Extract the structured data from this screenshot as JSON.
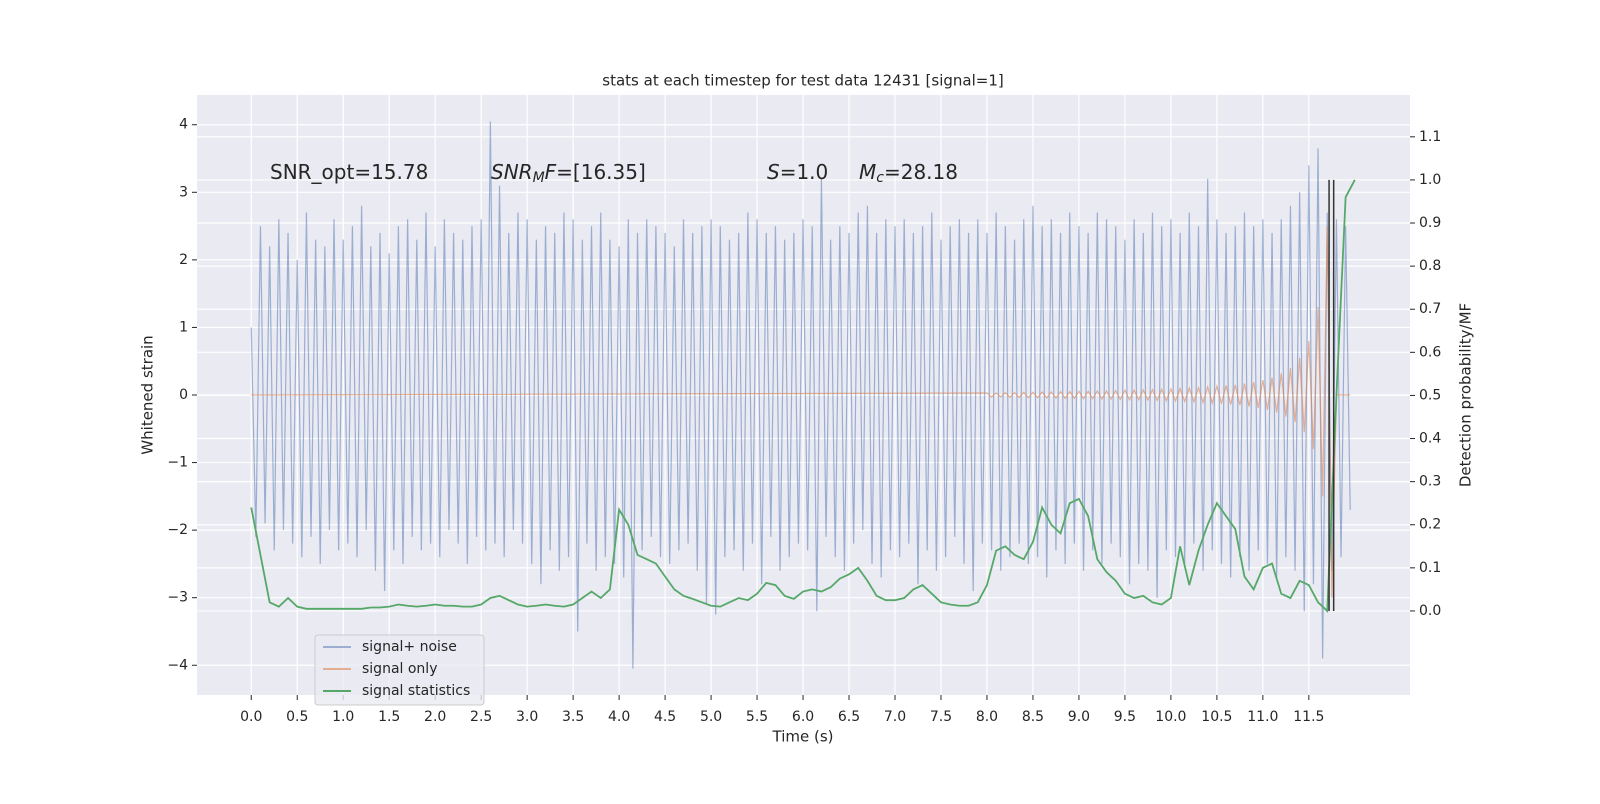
{
  "chart_data": {
    "type": "line",
    "title": "stats at each timestep for test data 12431 [signal=1]",
    "xlabel": "Time (s)",
    "ylabel": "Whitened strain",
    "y2label": "Detection probability/MF",
    "annotations": [
      [
        "SNR_opt=15.78"
      ],
      [
        "SNR",
        "M",
        "F",
        "=[16.35]"
      ],
      [
        "S",
        "=1.0"
      ],
      [
        "M",
        "c",
        "=28.18"
      ]
    ],
    "xlim": [
      -0.59,
      12.6
    ],
    "ylim": [
      -4.44,
      4.44
    ],
    "y2lim": [
      -0.195,
      1.197
    ],
    "xticks": [
      {
        "value": 0,
        "label": "0.0"
      },
      0.5,
      {
        "value": 1,
        "label": "1.0"
      },
      1.5,
      {
        "value": 2,
        "label": "2.0"
      },
      2.5,
      {
        "value": 3,
        "label": "3.0"
      },
      3.5,
      {
        "value": 4,
        "label": "4.0"
      },
      4.5,
      {
        "value": 5,
        "label": "5.0"
      },
      5.5,
      {
        "value": 6,
        "label": "6.0"
      },
      6.5,
      {
        "value": 7,
        "label": "7.0"
      },
      7.5,
      {
        "value": 8,
        "label": "8.0"
      },
      8.5,
      {
        "value": 9,
        "label": "9.0"
      },
      9.5,
      {
        "value": 10,
        "label": "10.0"
      },
      10.5,
      {
        "value": 11,
        "label": "11.0"
      },
      11.5
    ],
    "yticks": [
      {
        "value": -4,
        "label": "−4"
      },
      {
        "value": -3,
        "label": "−3"
      },
      {
        "value": -2,
        "label": "−2"
      },
      {
        "value": -1,
        "label": "−1"
      },
      0,
      1,
      2,
      3,
      4
    ],
    "y2ticks": [
      {
        "value": 0,
        "label": "0.0"
      },
      0.1,
      0.2,
      0.3,
      0.4,
      0.5,
      0.6,
      0.7,
      0.8,
      0.9,
      {
        "value": 1,
        "label": "1.0"
      },
      1.1
    ],
    "grid": true,
    "legend": "lower left",
    "series": [
      {
        "name": "signal+ noise",
        "color": "#4c72b0",
        "opacity": 0.5,
        "x": [
          0,
          0.05,
          0.1,
          0.15,
          0.2,
          0.25,
          0.3,
          0.35,
          0.4,
          0.45,
          0.5,
          0.55,
          0.6,
          0.65,
          0.7,
          0.75,
          0.8,
          0.85,
          0.9,
          0.95,
          1,
          1.05,
          1.1,
          1.15,
          1.2,
          1.25,
          1.3,
          1.35,
          1.4,
          1.45,
          1.5,
          1.55,
          1.6,
          1.65,
          1.7,
          1.75,
          1.8,
          1.85,
          1.9,
          1.95,
          2,
          2.05,
          2.1,
          2.15,
          2.2,
          2.25,
          2.3,
          2.35,
          2.4,
          2.45,
          2.5,
          2.55,
          2.6,
          2.65,
          2.7,
          2.75,
          2.8,
          2.85,
          2.9,
          2.95,
          3,
          3.05,
          3.1,
          3.15,
          3.2,
          3.25,
          3.3,
          3.35,
          3.4,
          3.45,
          3.5,
          3.55,
          3.6,
          3.65,
          3.7,
          3.75,
          3.8,
          3.85,
          3.9,
          3.95,
          4,
          4.05,
          4.1,
          4.15,
          4.2,
          4.25,
          4.3,
          4.35,
          4.4,
          4.45,
          4.5,
          4.55,
          4.6,
          4.65,
          4.7,
          4.75,
          4.8,
          4.85,
          4.9,
          4.95,
          5,
          5.05,
          5.1,
          5.15,
          5.2,
          5.25,
          5.3,
          5.35,
          5.4,
          5.45,
          5.5,
          5.55,
          5.6,
          5.65,
          5.7,
          5.75,
          5.8,
          5.85,
          5.9,
          5.95,
          6,
          6.05,
          6.1,
          6.15,
          6.2,
          6.25,
          6.3,
          6.35,
          6.4,
          6.45,
          6.5,
          6.55,
          6.6,
          6.65,
          6.7,
          6.75,
          6.8,
          6.85,
          6.9,
          6.95,
          7,
          7.05,
          7.1,
          7.15,
          7.2,
          7.25,
          7.3,
          7.35,
          7.4,
          7.45,
          7.5,
          7.55,
          7.6,
          7.65,
          7.7,
          7.75,
          7.8,
          7.85,
          7.9,
          7.95,
          8,
          8.05,
          8.1,
          8.15,
          8.2,
          8.25,
          8.3,
          8.35,
          8.4,
          8.45,
          8.5,
          8.55,
          8.6,
          8.65,
          8.7,
          8.75,
          8.8,
          8.85,
          8.9,
          8.95,
          9,
          9.05,
          9.1,
          9.15,
          9.2,
          9.25,
          9.3,
          9.35,
          9.4,
          9.45,
          9.5,
          9.55,
          9.6,
          9.65,
          9.7,
          9.75,
          9.8,
          9.85,
          9.9,
          9.95,
          10,
          10.05,
          10.1,
          10.15,
          10.2,
          10.25,
          10.3,
          10.35,
          10.4,
          10.45,
          10.5,
          10.55,
          10.6,
          10.65,
          10.7,
          10.75,
          10.8,
          10.85,
          10.9,
          10.95,
          11,
          11.05,
          11.1,
          11.15,
          11.2,
          11.25,
          11.3,
          11.35,
          11.4,
          11.45,
          11.5,
          11.55,
          11.6,
          11.65,
          11.7,
          11.75,
          11.8,
          11.85,
          11.9,
          11.95
        ],
        "values": [
          1.0,
          -2.1,
          2.5,
          -1.9,
          2.2,
          -2.3,
          2.6,
          -2.0,
          2.4,
          -2.2,
          2.0,
          -2.4,
          2.7,
          -2.1,
          2.3,
          -2.5,
          2.2,
          -2.0,
          2.6,
          -2.3,
          2.3,
          -2.2,
          2.5,
          -2.4,
          2.8,
          -2.0,
          2.2,
          -2.6,
          2.4,
          -2.9,
          2.1,
          -2.3,
          2.5,
          -2.5,
          2.6,
          -2.1,
          2.3,
          -2.3,
          2.7,
          -2.2,
          2.2,
          -2.4,
          2.6,
          -2.0,
          2.4,
          -2.2,
          2.3,
          -2.5,
          2.5,
          -2.1,
          2.6,
          -2.3,
          4.05,
          -2.2,
          3.1,
          -2.4,
          2.4,
          -2.0,
          2.7,
          -2.2,
          2.6,
          -2.5,
          2.3,
          -2.8,
          2.5,
          -2.3,
          2.4,
          -2.6,
          2.7,
          -2.4,
          2.6,
          -3.5,
          2.3,
          -2.2,
          2.5,
          -2.6,
          2.7,
          -2.4,
          2.3,
          -2.5,
          2.2,
          -2.7,
          2.6,
          -4.05,
          2.4,
          -2.3,
          2.6,
          -2.1,
          2.5,
          -2.4,
          2.4,
          -2.5,
          2.2,
          -2.3,
          2.6,
          -2.2,
          2.4,
          -2.6,
          2.5,
          -3.1,
          2.6,
          -3.25,
          2.5,
          -2.4,
          2.3,
          -2.3,
          2.4,
          -2.6,
          2.7,
          -2.2,
          2.6,
          -2.8,
          2.4,
          -2.1,
          2.5,
          -2.6,
          2.3,
          -2.4,
          2.4,
          -2.2,
          2.6,
          -2.3,
          2.5,
          -3.2,
          3.2,
          -2.1,
          2.3,
          -2.4,
          2.5,
          -2.6,
          2.4,
          -2.2,
          2.7,
          -2.0,
          2.8,
          -2.5,
          2.4,
          -2.7,
          2.6,
          -2.3,
          2.5,
          -2.4,
          2.6,
          -2.2,
          2.4,
          -2.8,
          2.5,
          -2.3,
          2.7,
          -2.6,
          2.3,
          -2.4,
          2.5,
          -2.1,
          2.6,
          -2.5,
          2.4,
          -2.9,
          2.6,
          -2.2,
          2.4,
          -2.3,
          2.7,
          -2.6,
          2.5,
          -2.4,
          2.3,
          -2.2,
          2.6,
          -2.5,
          2.8,
          -2.4,
          2.5,
          -2.7,
          2.6,
          -2.3,
          2.4,
          -2.5,
          2.7,
          -2.2,
          2.5,
          -2.6,
          2.4,
          -2.3,
          2.7,
          -2.5,
          2.6,
          -2.2,
          2.5,
          -2.4,
          2.3,
          -2.8,
          2.6,
          -2.5,
          2.4,
          -2.6,
          2.7,
          -3.0,
          2.5,
          -2.3,
          2.6,
          -2.4,
          2.4,
          -2.5,
          2.7,
          -2.2,
          2.5,
          -2.6,
          3.2,
          -2.3,
          2.6,
          -2.5,
          2.4,
          -2.7,
          2.5,
          -2.4,
          2.7,
          -2.6,
          2.5,
          -2.3,
          2.6,
          -2.5,
          2.4,
          -2.7,
          2.6,
          -2.4,
          2.8,
          -2.6,
          3.0,
          -3.2,
          3.4,
          -2.8,
          3.65,
          -3.9,
          2.7,
          -2.6,
          2.6,
          -2.4,
          2.5,
          -1.7
        ]
      },
      {
        "name": "signal only",
        "color": "#dd8452",
        "opacity": 0.6,
        "x": [
          0,
          8,
          8.05,
          8.1,
          8.15,
          8.2,
          8.25,
          8.3,
          8.35,
          8.4,
          8.45,
          8.5,
          8.55,
          8.6,
          8.65,
          8.7,
          8.75,
          8.8,
          8.85,
          8.9,
          8.95,
          9,
          9.05,
          9.1,
          9.15,
          9.2,
          9.25,
          9.3,
          9.35,
          9.4,
          9.45,
          9.5,
          9.55,
          9.6,
          9.65,
          9.7,
          9.75,
          9.8,
          9.85,
          9.9,
          9.95,
          10,
          10.05,
          10.1,
          10.15,
          10.2,
          10.25,
          10.3,
          10.35,
          10.4,
          10.45,
          10.5,
          10.55,
          10.6,
          10.65,
          10.7,
          10.75,
          10.8,
          10.85,
          10.9,
          10.95,
          11,
          11.05,
          11.1,
          11.15,
          11.2,
          11.25,
          11.3,
          11.35,
          11.4,
          11.45,
          11.5,
          11.55,
          11.6,
          11.65,
          11.7,
          11.75,
          11.8,
          11.85,
          11.9,
          11.95
        ],
        "values": [
          0,
          0.03,
          -0.03,
          0.03,
          -0.03,
          0.035,
          -0.035,
          0.035,
          -0.035,
          0.04,
          -0.04,
          0.04,
          -0.04,
          0.045,
          -0.045,
          0.045,
          -0.045,
          0.05,
          -0.05,
          0.05,
          -0.05,
          0.055,
          -0.055,
          0.055,
          -0.055,
          0.06,
          -0.06,
          0.06,
          -0.06,
          0.065,
          -0.065,
          0.07,
          -0.07,
          0.07,
          -0.07,
          0.075,
          -0.075,
          0.08,
          -0.08,
          0.085,
          -0.085,
          0.09,
          -0.09,
          0.095,
          -0.095,
          0.1,
          -0.1,
          0.11,
          -0.11,
          0.12,
          -0.12,
          0.13,
          -0.13,
          0.14,
          -0.14,
          0.15,
          -0.15,
          0.17,
          -0.17,
          0.19,
          -0.19,
          0.22,
          -0.22,
          0.26,
          -0.26,
          0.32,
          -0.32,
          0.4,
          -0.4,
          0.55,
          -0.55,
          0.8,
          -0.8,
          1.3,
          -1.5,
          2.5,
          -3.0,
          0,
          0,
          0,
          0
        ]
      },
      {
        "name": "signal statistics",
        "color": "#55a868",
        "opacity": 1,
        "axis": "y2",
        "x": [
          0,
          0.1,
          0.2,
          0.3,
          0.4,
          0.5,
          0.6,
          0.7,
          0.8,
          0.9,
          1,
          1.1,
          1.2,
          1.3,
          1.4,
          1.5,
          1.6,
          1.7,
          1.8,
          1.9,
          2,
          2.1,
          2.2,
          2.3,
          2.4,
          2.5,
          2.6,
          2.7,
          2.8,
          2.9,
          3,
          3.1,
          3.2,
          3.3,
          3.4,
          3.5,
          3.6,
          3.7,
          3.8,
          3.9,
          4,
          4.1,
          4.2,
          4.3,
          4.4,
          4.5,
          4.6,
          4.7,
          4.8,
          4.9,
          5,
          5.1,
          5.2,
          5.3,
          5.4,
          5.5,
          5.6,
          5.7,
          5.8,
          5.9,
          6,
          6.1,
          6.2,
          6.3,
          6.4,
          6.5,
          6.6,
          6.7,
          6.8,
          6.9,
          7,
          7.1,
          7.2,
          7.3,
          7.4,
          7.5,
          7.6,
          7.7,
          7.8,
          7.9,
          8,
          8.1,
          8.2,
          8.3,
          8.4,
          8.5,
          8.6,
          8.7,
          8.8,
          8.9,
          9,
          9.1,
          9.2,
          9.3,
          9.4,
          9.5,
          9.6,
          9.7,
          9.8,
          9.9,
          10,
          10.1,
          10.2,
          10.3,
          10.4,
          10.5,
          10.6,
          10.7,
          10.8,
          10.9,
          11,
          11.1,
          11.2,
          11.3,
          11.4,
          11.5,
          11.6,
          11.7,
          11.8,
          11.9,
          12
        ],
        "values": [
          0.24,
          0.13,
          0.02,
          0.01,
          0.03,
          0.01,
          0.005,
          0.005,
          0.005,
          0.005,
          0.005,
          0.005,
          0.005,
          0.008,
          0.008,
          0.01,
          0.015,
          0.012,
          0.01,
          0.012,
          0.015,
          0.012,
          0.012,
          0.01,
          0.01,
          0.015,
          0.03,
          0.035,
          0.025,
          0.015,
          0.01,
          0.012,
          0.015,
          0.012,
          0.01,
          0.015,
          0.03,
          0.045,
          0.03,
          0.05,
          0.235,
          0.2,
          0.13,
          0.12,
          0.11,
          0.08,
          0.05,
          0.035,
          0.028,
          0.02,
          0.012,
          0.01,
          0.02,
          0.03,
          0.025,
          0.04,
          0.065,
          0.06,
          0.035,
          0.028,
          0.045,
          0.05,
          0.045,
          0.055,
          0.075,
          0.085,
          0.1,
          0.07,
          0.035,
          0.025,
          0.025,
          0.03,
          0.05,
          0.06,
          0.04,
          0.02,
          0.015,
          0.012,
          0.012,
          0.02,
          0.06,
          0.14,
          0.15,
          0.13,
          0.12,
          0.16,
          0.24,
          0.2,
          0.18,
          0.25,
          0.26,
          0.22,
          0.12,
          0.09,
          0.07,
          0.04,
          0.03,
          0.035,
          0.02,
          0.015,
          0.03,
          0.15,
          0.06,
          0.14,
          0.2,
          0.25,
          0.22,
          0.19,
          0.08,
          0.05,
          0.1,
          0.11,
          0.04,
          0.03,
          0.07,
          0.06,
          0.02,
          0.0,
          0.5,
          0.96,
          1.0
        ]
      }
    ],
    "vlines": [
      {
        "x": 11.72,
        "ymin": 0,
        "ymax": 1,
        "axis": "y2",
        "color": "#333333"
      },
      {
        "x": 11.77,
        "ymin": 0,
        "ymax": 1,
        "axis": "y2",
        "color": "#333333"
      }
    ]
  }
}
